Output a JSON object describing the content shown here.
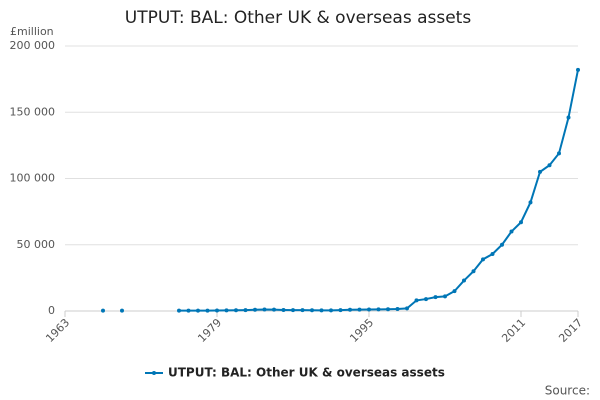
{
  "chart_data": {
    "type": "line",
    "title": "UTPUT: BAL: Other UK & overseas assets",
    "y_label": "£million",
    "source": "Source:",
    "x": [
      1963,
      1964,
      1965,
      1966,
      1967,
      1968,
      1969,
      1970,
      1971,
      1972,
      1973,
      1974,
      1975,
      1976,
      1977,
      1978,
      1979,
      1980,
      1981,
      1982,
      1983,
      1984,
      1985,
      1986,
      1987,
      1988,
      1989,
      1990,
      1991,
      1992,
      1993,
      1994,
      1995,
      1996,
      1997,
      1998,
      1999,
      2000,
      2001,
      2002,
      2003,
      2004,
      2005,
      2006,
      2007,
      2008,
      2009,
      2010,
      2011,
      2012,
      2013,
      2014,
      2015,
      2016,
      2017
    ],
    "series": [
      {
        "name": "UTPUT: BAL: Other UK & overseas assets",
        "color": "#0076b6",
        "values": [
          null,
          null,
          null,
          null,
          300,
          null,
          300,
          null,
          null,
          null,
          null,
          null,
          300,
          300,
          300,
          300,
          400,
          500,
          600,
          700,
          900,
          1100,
          1000,
          800,
          700,
          700,
          600,
          500,
          500,
          700,
          900,
          1000,
          1100,
          1200,
          1300,
          1500,
          2000,
          8000,
          9000,
          10500,
          11000,
          15000,
          23000,
          30000,
          39000,
          43000,
          50000,
          60000,
          67000,
          82000,
          105000,
          110000,
          119000,
          146000,
          182000
        ]
      }
    ],
    "xlim": [
      1963,
      2017
    ],
    "xticks": [
      1963,
      1979,
      1995,
      2011,
      2017
    ],
    "ylim": [
      0,
      200000
    ],
    "yticks": [
      0,
      {
        "value": 50000,
        "label": "50 000"
      },
      {
        "value": 100000,
        "label": "100 000"
      },
      {
        "value": 150000,
        "label": "150 000"
      },
      {
        "value": 200000,
        "label": "200 000"
      }
    ],
    "grid": true
  }
}
